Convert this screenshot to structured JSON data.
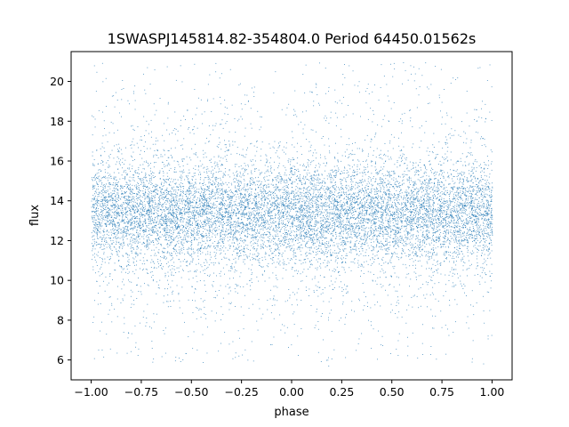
{
  "chart_data": {
    "type": "scatter",
    "title": "1SWASPJ145814.82-354804.0 Period 64450.01562s",
    "xlabel": "phase",
    "ylabel": "flux",
    "xlim": [
      -1.1,
      1.1
    ],
    "ylim": [
      5.0,
      21.5
    ],
    "xticks": [
      -1.0,
      -0.75,
      -0.5,
      -0.25,
      0.0,
      0.25,
      0.5,
      0.75,
      1.0
    ],
    "xtick_labels": [
      "−1.00",
      "−0.75",
      "−0.50",
      "−0.25",
      "0.00",
      "0.25",
      "0.50",
      "0.75",
      "1.00"
    ],
    "yticks": [
      6,
      8,
      10,
      12,
      14,
      16,
      18,
      20
    ],
    "ytick_labels": [
      "6",
      "8",
      "10",
      "12",
      "14",
      "16",
      "18",
      "20"
    ],
    "grid": false,
    "legend": "none",
    "marker_color": "#1f77b4",
    "series": [
      {
        "x_range": [
          -1.0,
          1.0
        ],
        "y_center": 13.4,
        "y_core_spread": 1.6,
        "y_min": 5.7,
        "y_max": 21.0
      }
    ]
  }
}
